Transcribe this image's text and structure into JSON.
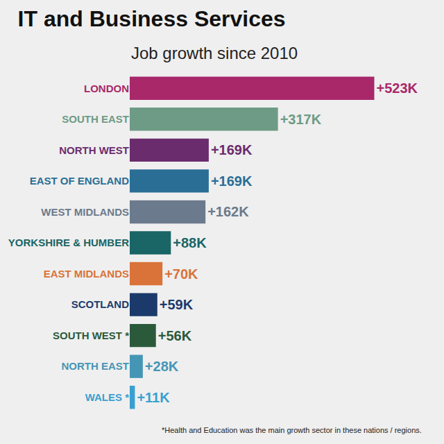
{
  "chart_data": {
    "type": "bar",
    "orientation": "horizontal",
    "title": "IT and Business Services",
    "subtitle": "Job growth since 2010",
    "categories": [
      "LONDON",
      "SOUTH EAST",
      "NORTH WEST",
      "EAST OF ENGLAND",
      "WEST MIDLANDS",
      "YORKSHIRE & HUMBER",
      "EAST MIDLANDS",
      "SCOTLAND",
      "SOUTH WEST *",
      "NORTH EAST",
      "WALES *"
    ],
    "values": [
      523,
      317,
      169,
      169,
      162,
      88,
      70,
      59,
      56,
      28,
      11
    ],
    "value_labels": [
      "+523K",
      "+317K",
      "+169K",
      "+169K",
      "+162K",
      "+88K",
      "+70K",
      "+59K",
      "+56K",
      "+28K",
      "+11K"
    ],
    "colors": [
      "#a8286a",
      "#6e9b86",
      "#6b2c6e",
      "#2a6e96",
      "#6b7a8c",
      "#1a6566",
      "#d9733a",
      "#1b3a6b",
      "#2b5a3b",
      "#4596b5",
      "#3a9fd0"
    ],
    "data_labels": true,
    "tick_labels": "y",
    "grid": false,
    "annotations": [
      "*Health and Education was the main growth sector in these nations / regions."
    ]
  }
}
